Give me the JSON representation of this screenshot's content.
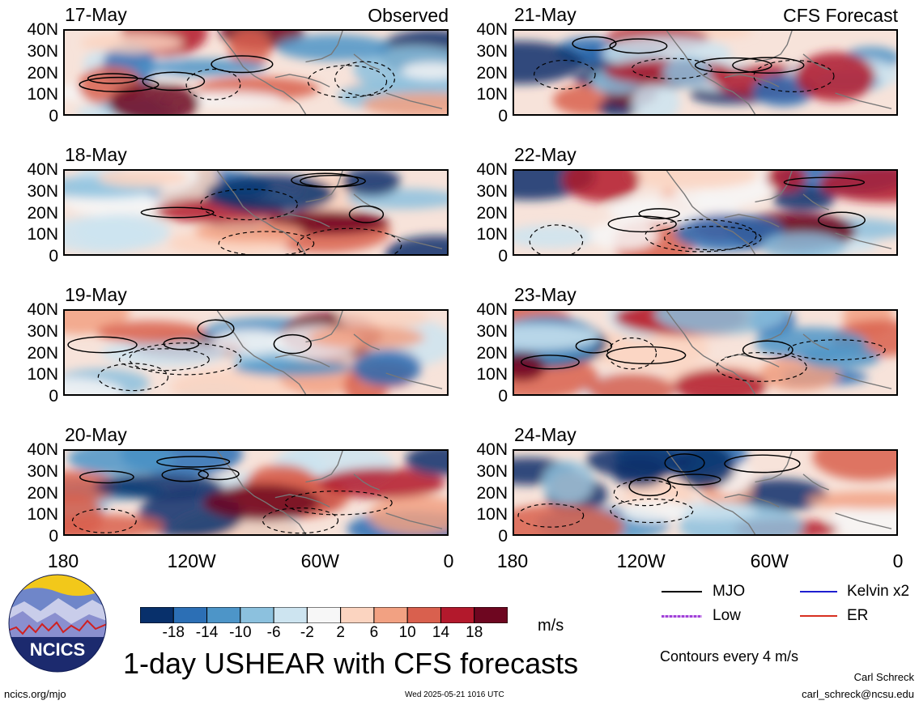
{
  "panels": [
    {
      "date": "17-May",
      "label": "Observed",
      "col": 0,
      "row": 0
    },
    {
      "date": "18-May",
      "label": "",
      "col": 0,
      "row": 1
    },
    {
      "date": "19-May",
      "label": "",
      "col": 0,
      "row": 2
    },
    {
      "date": "20-May",
      "label": "",
      "col": 0,
      "row": 3
    },
    {
      "date": "21-May",
      "label": "CFS Forecast",
      "col": 1,
      "row": 0
    },
    {
      "date": "22-May",
      "label": "",
      "col": 1,
      "row": 1
    },
    {
      "date": "23-May",
      "label": "",
      "col": 1,
      "row": 2
    },
    {
      "date": "24-May",
      "label": "",
      "col": 1,
      "row": 3
    }
  ],
  "lat_ticks": [
    "40N",
    "30N",
    "20N",
    "10N",
    "0"
  ],
  "lon_ticks": [
    "180",
    "120W",
    "60W",
    "0"
  ],
  "colorbar": {
    "ticks": [
      "-18",
      "-14",
      "-10",
      "-6",
      "-2",
      "2",
      "6",
      "10",
      "14",
      "18"
    ],
    "units": "m/s",
    "colors": [
      "#08306b",
      "#2c6fb5",
      "#4d95c8",
      "#8cc1de",
      "#cde4f0",
      "#f7f7f7",
      "#fbd4c0",
      "#f2a182",
      "#d9604e",
      "#b3192c",
      "#6e0620"
    ]
  },
  "legend": {
    "items": [
      {
        "label": "MJO",
        "color": "#000000"
      },
      {
        "label": "Kelvin x2",
        "color": "#1f1fd0"
      },
      {
        "label": "Low",
        "color": "#a040d8"
      },
      {
        "label": "ER",
        "color": "#d83020"
      }
    ],
    "contours_note": "Contours every 4 m/s"
  },
  "title": "1-day USHEAR with CFS forecasts",
  "logo_text": "NCICS",
  "footer": {
    "url": "ncics.org/mjo",
    "timestamp": "Wed 2025-05-21 1016 UTC",
    "author": "Carl Schreck",
    "email": "carl_schreck@ncsu.edu"
  }
}
